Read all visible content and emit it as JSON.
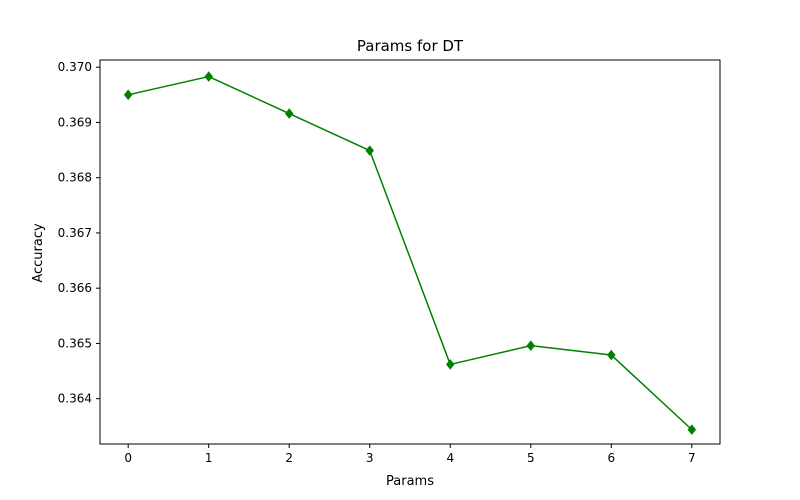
{
  "chart_data": {
    "type": "line",
    "title": "Params for DT",
    "xlabel": "Params",
    "ylabel": "Accuracy",
    "x": [
      0,
      1,
      2,
      3,
      4,
      5,
      6,
      7
    ],
    "series": [
      {
        "values": [
          0.3695,
          0.36983,
          0.36916,
          0.36849,
          0.36462,
          0.36496,
          0.36479,
          0.36344
        ],
        "color": "#008000",
        "marker": "diamond"
      }
    ],
    "xlim": [
      -0.35,
      7.35
    ],
    "ylim": [
      0.36318,
      0.37013
    ],
    "xticks": [
      0,
      1,
      2,
      3,
      4,
      5,
      6,
      7
    ],
    "xtick_labels": [
      "0",
      "1",
      "2",
      "3",
      "4",
      "5",
      "6",
      "7"
    ],
    "yticks": [
      0.364,
      0.365,
      0.366,
      0.367,
      0.368,
      0.369,
      0.37
    ],
    "ytick_labels": [
      "0.364",
      "0.365",
      "0.366",
      "0.367",
      "0.368",
      "0.369",
      "0.370"
    ],
    "grid": false,
    "legend": "none"
  }
}
